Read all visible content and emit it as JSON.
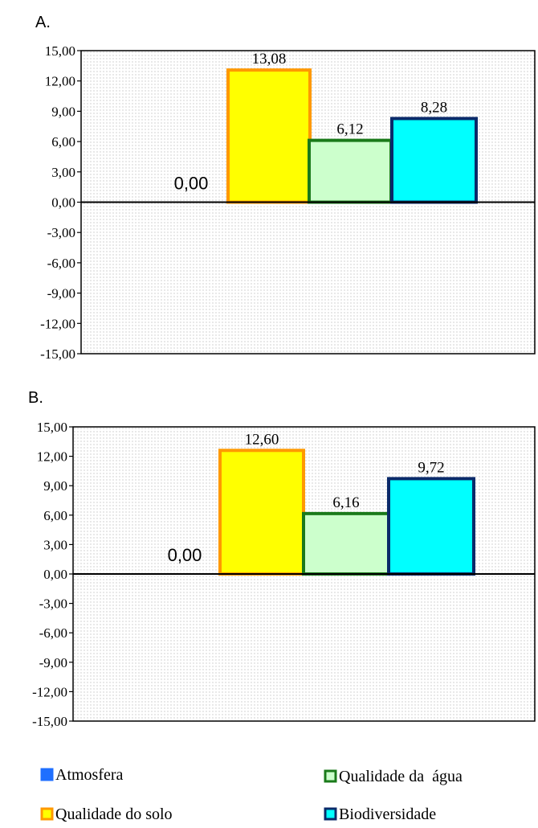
{
  "chart_data": [
    {
      "type": "bar",
      "panel": "A.",
      "categories": [
        "Atmosfera",
        "Qualidade do solo",
        "Qualidade da água",
        "Biodiversidade"
      ],
      "values": [
        0.0,
        13.08,
        6.12,
        8.28
      ],
      "value_labels": [
        "0,00",
        "13,08",
        "6,12",
        "8,28"
      ],
      "ylim": [
        -15,
        15
      ],
      "yticks": [
        "15,00",
        "12,00",
        "9,00",
        "6,00",
        "3,00",
        "0,00",
        "-3,00",
        "-6,00",
        "-9,00",
        "-12,00",
        "-15,00"
      ],
      "grid": false
    },
    {
      "type": "bar",
      "panel": "B.",
      "categories": [
        "Atmosfera",
        "Qualidade do solo",
        "Qualidade da água",
        "Biodiversidade"
      ],
      "values": [
        0.0,
        12.6,
        6.16,
        9.72
      ],
      "value_labels": [
        "0,00",
        "12,60",
        "6,16",
        "9,72"
      ],
      "ylim": [
        -15,
        15
      ],
      "yticks": [
        "15,00",
        "12,00",
        "9,00",
        "6,00",
        "3,00",
        "0,00",
        "-3,00",
        "-6,00",
        "-9,00",
        "-12,00",
        "-15,00"
      ],
      "grid": false
    }
  ],
  "legend": {
    "placement": "bottom",
    "items": [
      {
        "label": "Atmosfera",
        "fill": "#1f6fff",
        "stroke": "#1f6fff"
      },
      {
        "label": "Qualidade da  água",
        "fill": "#ccffcc",
        "stroke": "#1a7a1a"
      },
      {
        "label": "Qualidade do solo",
        "fill": "#ffff00",
        "stroke": "#ff9900"
      },
      {
        "label": "Biodiversidade",
        "fill": "#00ffff",
        "stroke": "#0a2a6a"
      }
    ]
  },
  "colors": {
    "Atmosfera": {
      "fill": "#1f6fff",
      "stroke": "#1f6fff"
    },
    "Qualidade do solo": {
      "fill": "#ffff00",
      "stroke": "#ff9900"
    },
    "Qualidade da água": {
      "fill": "#ccffcc",
      "stroke": "#1a7a1a"
    },
    "Biodiversidade": {
      "fill": "#00ffff",
      "stroke": "#0a2a6a"
    }
  }
}
